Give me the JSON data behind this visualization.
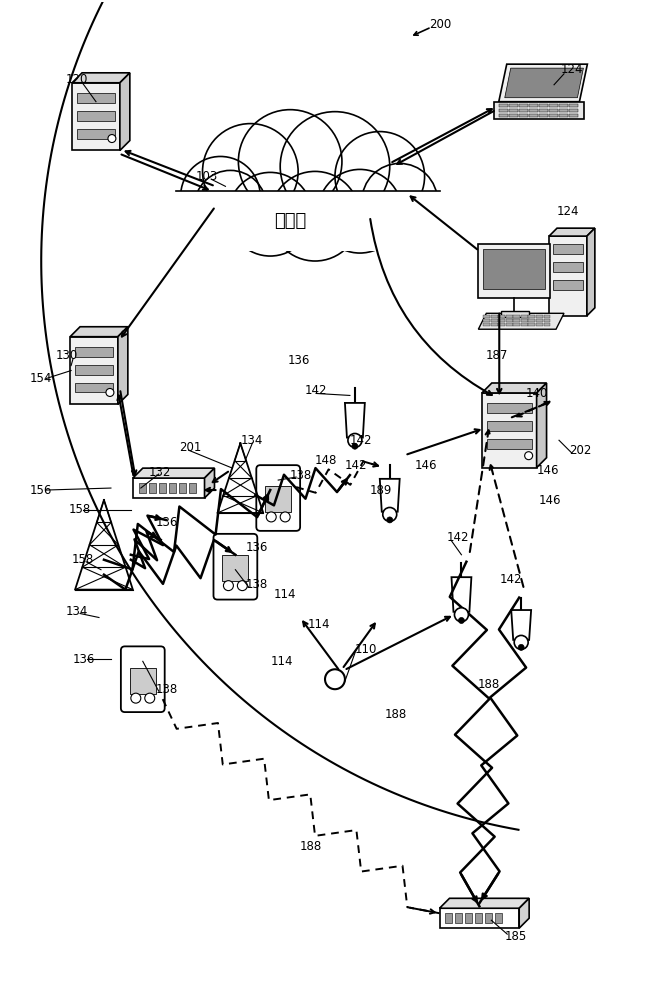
{
  "bg_color": "#ffffff",
  "fig_w": 6.55,
  "fig_h": 10.0,
  "dpi": 100
}
